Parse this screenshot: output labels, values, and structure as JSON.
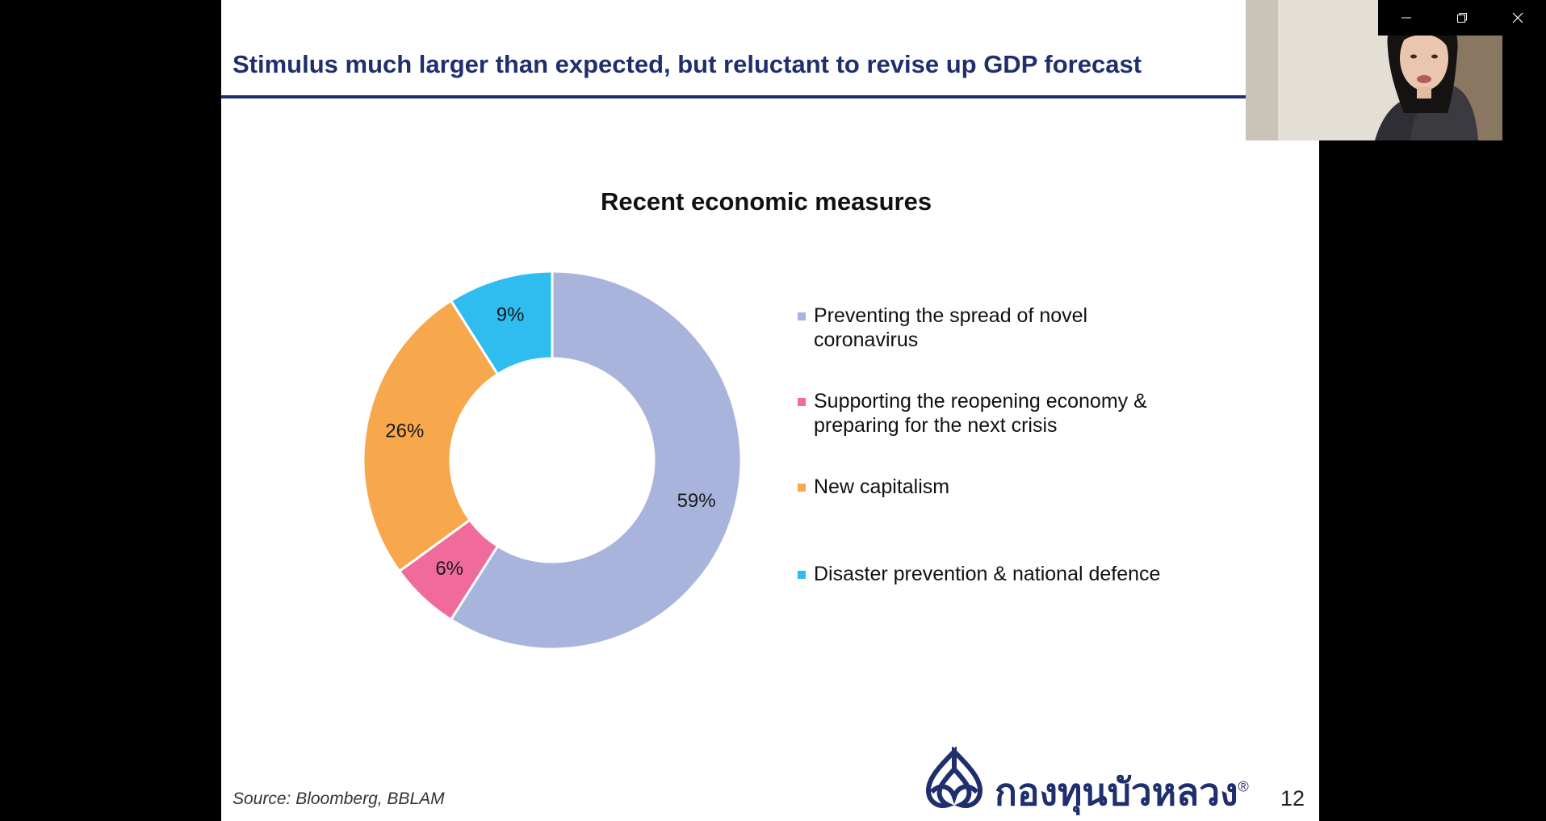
{
  "window": {
    "minimize_icon": "minimize-icon",
    "restore_icon": "restore-icon",
    "close_icon": "close-icon"
  },
  "slide": {
    "title": "Stimulus much larger than expected, but reluctant to revise up GDP forecast",
    "source": "Source:  Bloomberg, BBLAM",
    "page_number": "12",
    "logo_text": "กองทุนบัวหลวง",
    "logo_mark": "®",
    "colors": {
      "title": "#1f2f6e",
      "rule": "#1f2f6e"
    }
  },
  "chart_data": {
    "type": "pie",
    "donut": true,
    "title": "Recent economic measures",
    "start": "top",
    "direction": "clockwise",
    "slices": [
      {
        "name": "Preventing the spread of novel coronavirus",
        "value": 59,
        "label": "59%",
        "color": "#a9b4dc"
      },
      {
        "name": "Supporting the reopening economy & preparing for the next crisis",
        "value": 6,
        "label": "6%",
        "color": "#f06b9c"
      },
      {
        "name": "New capitalism",
        "value": 26,
        "label": "26%",
        "color": "#f7a84c"
      },
      {
        "name": "Disaster prevention & national defence",
        "value": 9,
        "label": "9%",
        "color": "#2fbdef"
      }
    ],
    "legend": {
      "position": "right",
      "items": [
        {
          "lines": [
            "Preventing the spread of novel",
            "coronavirus"
          ],
          "color": "#a9b4dc"
        },
        {
          "lines": [
            "Supporting the reopening economy &",
            "preparing for the next crisis"
          ],
          "color": "#f06b9c"
        },
        {
          "lines": [
            "New capitalism"
          ],
          "color": "#f7a84c"
        },
        {
          "lines": [
            "Disaster prevention & national defence"
          ],
          "color": "#2fbdef"
        }
      ]
    }
  }
}
